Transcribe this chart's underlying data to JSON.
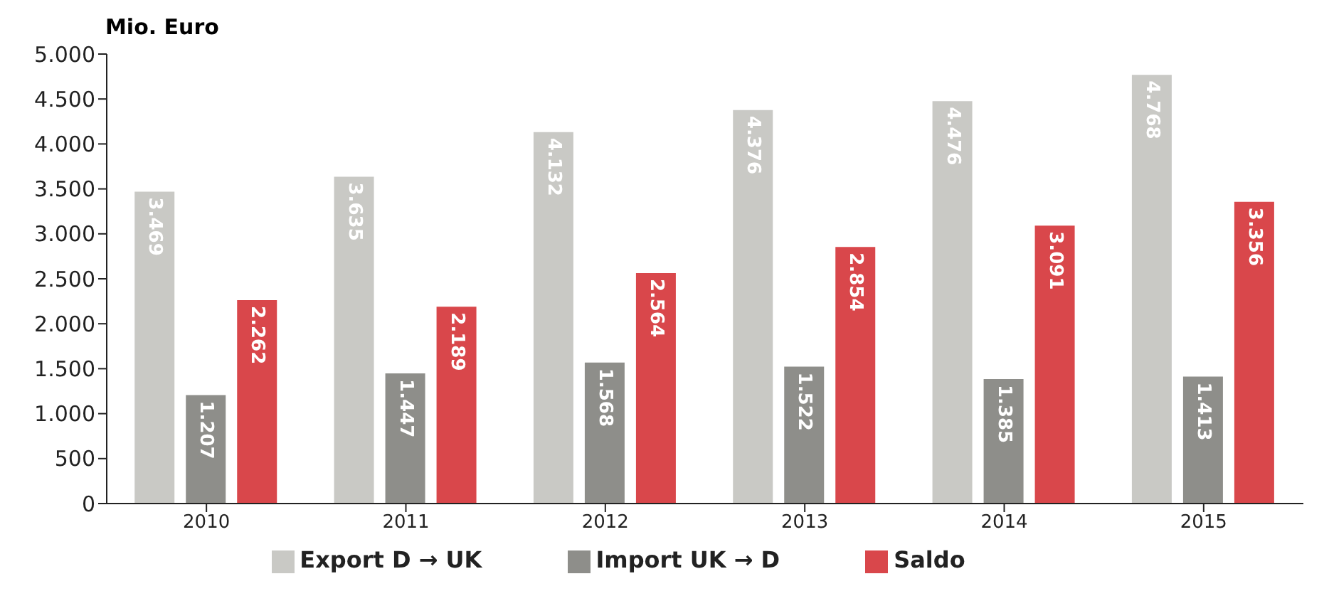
{
  "chart_data": {
    "type": "bar",
    "ylabel": "Mio. Euro",
    "categories": [
      "2010",
      "2011",
      "2012",
      "2013",
      "2014",
      "2015"
    ],
    "series": [
      {
        "name": "Export D → UK",
        "color": "#c9c9c5",
        "values": [
          3469,
          3635,
          4132,
          4376,
          4476,
          4768
        ],
        "value_labels": [
          "3.469",
          "3.635",
          "4.132",
          "4.376",
          "4.476",
          "4.768"
        ]
      },
      {
        "name": "Import UK → D",
        "color": "#8e8e8a",
        "values": [
          1207,
          1447,
          1568,
          1522,
          1385,
          1413
        ],
        "value_labels": [
          "1.207",
          "1.447",
          "1.568",
          "1.522",
          "1.385",
          "1.413"
        ]
      },
      {
        "name": "Saldo",
        "color": "#d9474b",
        "values": [
          2262,
          2189,
          2564,
          2854,
          3091,
          3356
        ],
        "value_labels": [
          "2.262",
          "2.189",
          "2.564",
          "2.854",
          "3.091",
          "3.356"
        ]
      }
    ],
    "ylim": [
      0,
      5000
    ],
    "yticks": [
      {
        "value": 0,
        "label": "0"
      },
      {
        "value": 500,
        "label": "500"
      },
      {
        "value": 1000,
        "label": "1.000"
      },
      {
        "value": 1500,
        "label": "1.500"
      },
      {
        "value": 2000,
        "label": "2.000"
      },
      {
        "value": 2500,
        "label": "2.500"
      },
      {
        "value": 3000,
        "label": "3.000"
      },
      {
        "value": 3500,
        "label": "3.500"
      },
      {
        "value": 4000,
        "label": "4.000"
      },
      {
        "value": 4500,
        "label": "4.500"
      },
      {
        "value": 5000,
        "label": "5.000"
      }
    ],
    "grid": false,
    "legend": "bottom"
  }
}
